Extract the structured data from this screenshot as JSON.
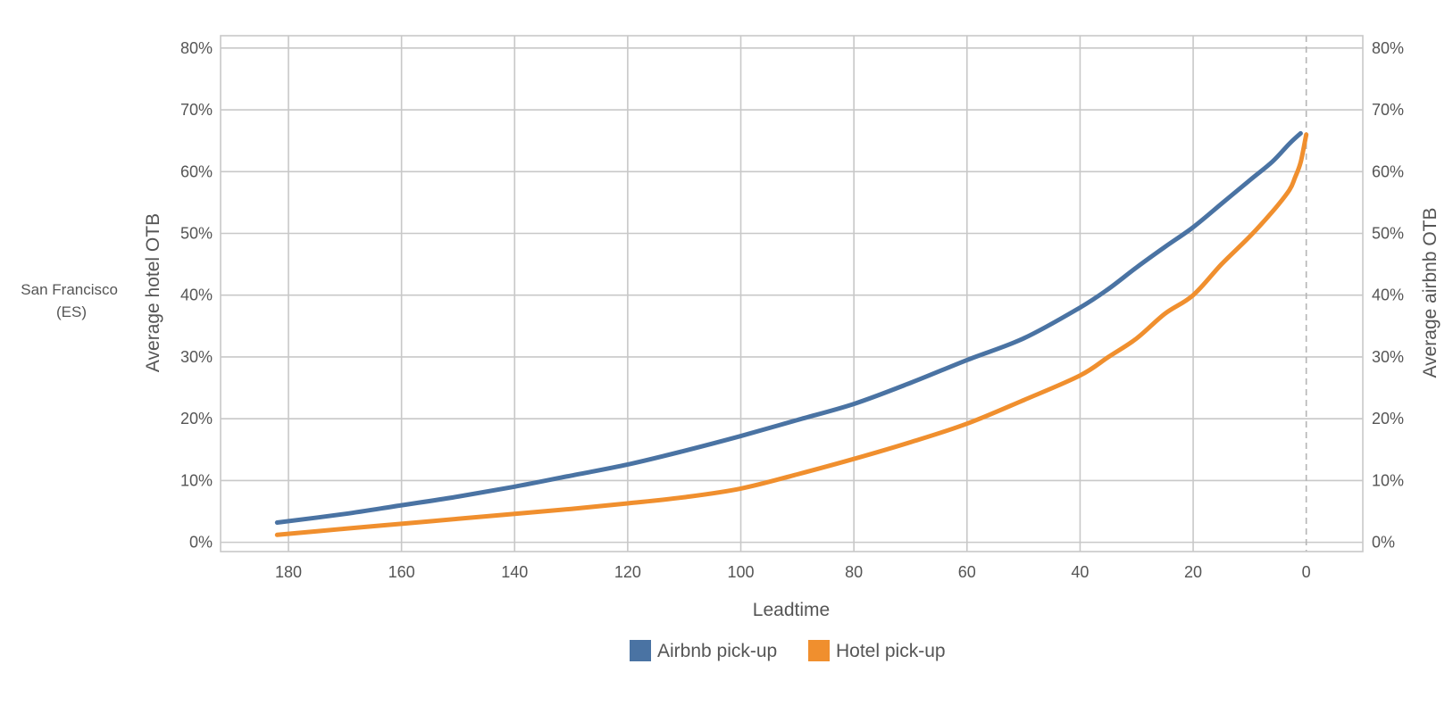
{
  "side_label_lines": [
    "San Francisco",
    "(ES)"
  ],
  "colors": {
    "airbnb": "#4a73a3",
    "hotel": "#f08f2e",
    "grid": "#c8c8c8",
    "text": "#555555"
  },
  "chart_data": {
    "type": "line",
    "xlabel": "Leadtime",
    "ylabel_left": "Average hotel OTB",
    "ylabel_right": "Average airbnb OTB",
    "x_ticks": [
      180,
      160,
      140,
      120,
      100,
      80,
      60,
      40,
      20,
      0
    ],
    "x_tick_labels": [
      "180",
      "160",
      "140",
      "120",
      "100",
      "80",
      "60",
      "40",
      "20",
      "0"
    ],
    "y_ticks": [
      0,
      10,
      20,
      30,
      40,
      50,
      60,
      70,
      80
    ],
    "y_tick_labels_left": [
      "0%",
      "10%",
      "20%",
      "30%",
      "40%",
      "50%",
      "60%",
      "70%",
      "80%"
    ],
    "y_tick_labels_right": [
      "0%",
      "10%",
      "20%",
      "30%",
      "40%",
      "50%",
      "60%",
      "70%",
      "80%"
    ],
    "xlim": [
      192,
      -10
    ],
    "ylim": [
      -1.5,
      82
    ],
    "grid": true,
    "legend": "bottom-center",
    "vline_at_x": 0,
    "series": [
      {
        "name": "Airbnb pick-up",
        "color_key": "airbnb",
        "x": [
          182,
          170,
          160,
          150,
          140,
          130,
          120,
          110,
          100,
          90,
          80,
          70,
          60,
          50,
          40,
          35,
          30,
          25,
          20,
          15,
          10,
          6,
          3,
          1
        ],
        "y": [
          3.2,
          4.6,
          6.0,
          7.4,
          9.0,
          10.8,
          12.6,
          14.8,
          17.2,
          19.8,
          22.4,
          25.8,
          29.5,
          33.0,
          38.0,
          41.0,
          44.5,
          47.8,
          51.0,
          54.8,
          58.6,
          61.6,
          64.5,
          66.2
        ]
      },
      {
        "name": "Hotel pick-up",
        "color_key": "hotel",
        "x": [
          182,
          170,
          160,
          150,
          140,
          130,
          120,
          110,
          100,
          90,
          80,
          70,
          60,
          50,
          40,
          35,
          30,
          25,
          20,
          15,
          10,
          6,
          3,
          2,
          1,
          0
        ],
        "y": [
          1.2,
          2.2,
          3.0,
          3.8,
          4.6,
          5.4,
          6.3,
          7.3,
          8.7,
          11.0,
          13.5,
          16.2,
          19.2,
          23.0,
          27.0,
          30.0,
          33.0,
          37.0,
          40.0,
          45.0,
          49.5,
          53.5,
          57.0,
          59.0,
          61.5,
          66.0
        ]
      }
    ]
  }
}
